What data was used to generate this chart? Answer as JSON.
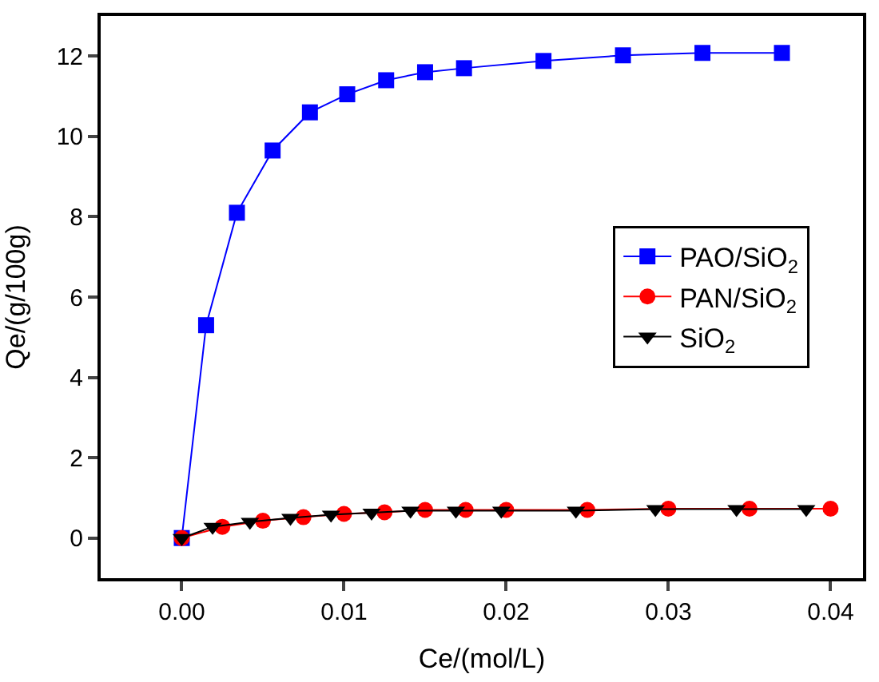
{
  "chart_data": {
    "type": "line",
    "xlabel": "Ce/(mol/L)",
    "ylabel": "Qe/(g/100g)",
    "xlim": [
      -0.005,
      0.042
    ],
    "ylim": [
      -1,
      13
    ],
    "xticks": [
      {
        "value": 0,
        "label": "0.00"
      },
      {
        "value": 0.01,
        "label": "0.01"
      },
      {
        "value": 0.02,
        "label": "0.02"
      },
      {
        "value": 0.03,
        "label": "0.03"
      },
      {
        "value": 0.04,
        "label": "0.04"
      }
    ],
    "yticks": [
      0,
      2,
      4,
      6,
      8,
      10,
      12
    ],
    "legend": "right",
    "series": [
      {
        "name": "PAO/SiO$_{2}$",
        "color": "#0000ff",
        "marker": "square",
        "x": [
          0,
          0.0015,
          0.0034,
          0.0056,
          0.0079,
          0.0102,
          0.0126,
          0.015,
          0.0174,
          0.0223,
          0.0272,
          0.0321,
          0.037
        ],
        "values": [
          0,
          5.3,
          8.1,
          9.65,
          10.6,
          11.05,
          11.4,
          11.6,
          11.7,
          11.88,
          12.02,
          12.08,
          12.08
        ]
      },
      {
        "name": "PAN/SiO$_{2}$",
        "color": "#ff0000",
        "marker": "circle",
        "x": [
          0,
          0.0025,
          0.005,
          0.0075,
          0.01,
          0.0125,
          0.015,
          0.0175,
          0.02,
          0.025,
          0.03,
          0.035,
          0.04
        ],
        "values": [
          0,
          0.28,
          0.43,
          0.52,
          0.6,
          0.64,
          0.7,
          0.7,
          0.7,
          0.7,
          0.73,
          0.73,
          0.73
        ]
      },
      {
        "name": "SiO$_{2}$",
        "color": "#000000",
        "marker": "triangle-down",
        "x": [
          0,
          0.0019,
          0.0042,
          0.0067,
          0.0092,
          0.0117,
          0.0141,
          0.0169,
          0.0197,
          0.0243,
          0.0292,
          0.0342,
          0.0385
        ],
        "values": [
          0,
          0.28,
          0.4,
          0.5,
          0.58,
          0.63,
          0.68,
          0.68,
          0.68,
          0.68,
          0.72,
          0.72,
          0.72
        ]
      }
    ]
  }
}
